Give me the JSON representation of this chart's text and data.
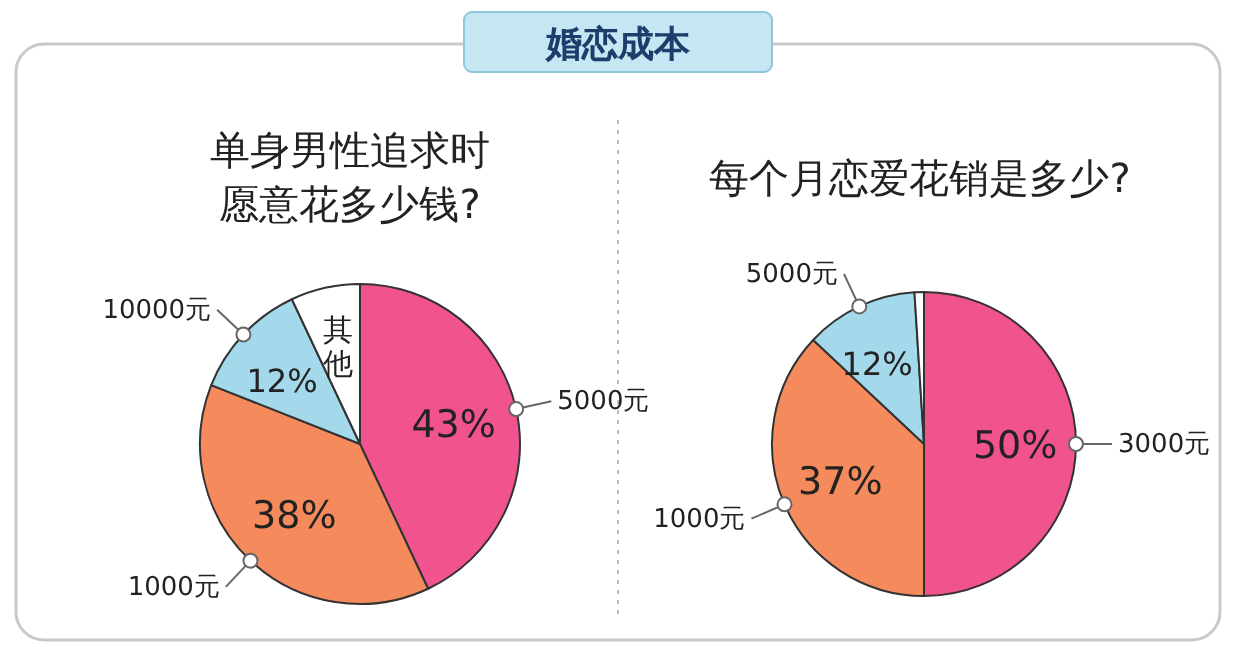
{
  "chart_data": [
    {
      "type": "pie",
      "title": "婚恋成本",
      "subtitle": "单身男性追求时愿意花多少钱?",
      "categories": [
        "5000元",
        "1000元",
        "10000元",
        "其他"
      ],
      "values": [
        43,
        38,
        12,
        7
      ],
      "colors": [
        "#f0538e",
        "#f58a5c",
        "#a3d9ea",
        "#ffffff"
      ],
      "value_labels": [
        "43%",
        "38%",
        "12%",
        null
      ]
    },
    {
      "type": "pie",
      "subtitle": "每个月恋爱花销是多少?",
      "categories": [
        "3000元",
        "1000元",
        "5000元",
        null
      ],
      "values": [
        50,
        37,
        12,
        1
      ],
      "colors": [
        "#f0538e",
        "#f58a5c",
        "#a3d9ea",
        "#ffffff"
      ],
      "value_labels": [
        "50%",
        "37%",
        "12%",
        null
      ]
    }
  ]
}
